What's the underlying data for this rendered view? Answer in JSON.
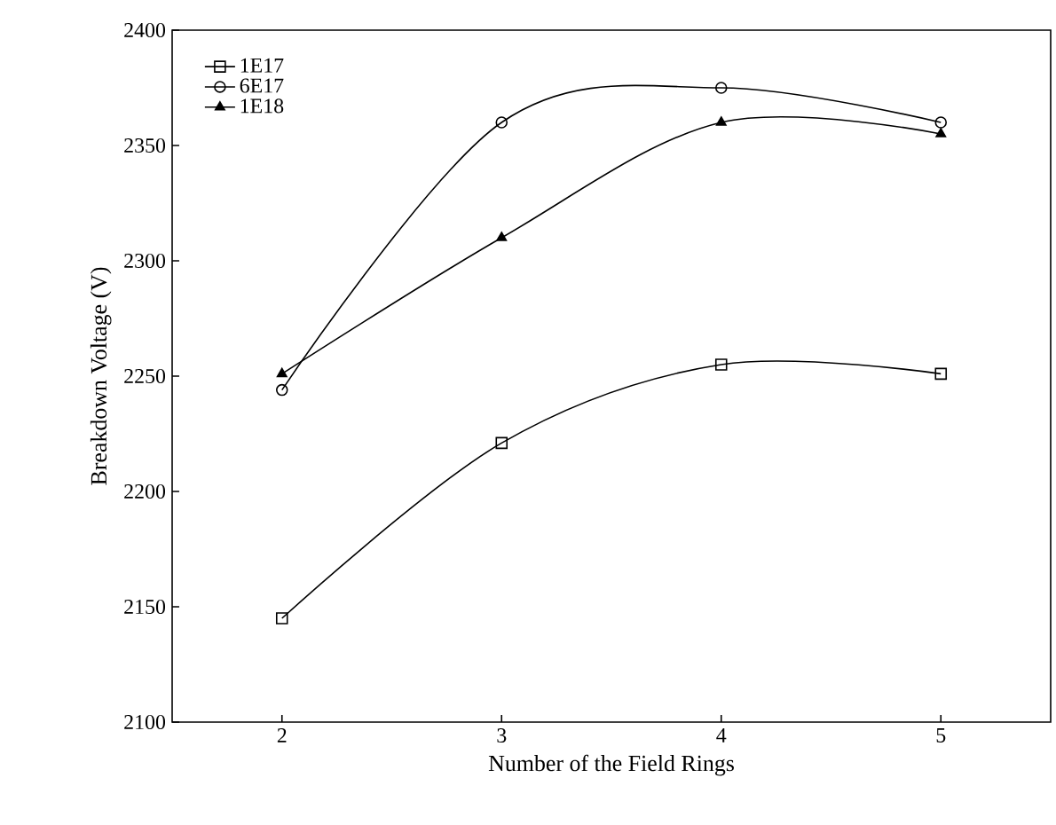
{
  "chart_data": {
    "type": "line",
    "xlabel": "Number of the Field Rings",
    "ylabel": "Breakdown Voltage (V)",
    "x": [
      2,
      3,
      4,
      5
    ],
    "series": [
      {
        "name": "1E17",
        "color": "#000000",
        "marker": "square",
        "values": [
          2145,
          2221,
          2255,
          2251
        ]
      },
      {
        "name": "6E17",
        "color": "#000000",
        "marker": "circle",
        "values": [
          2244,
          2360,
          2375,
          2360
        ]
      },
      {
        "name": "1E18",
        "color": "#000000",
        "marker": "triangle",
        "values": [
          2251,
          2310,
          2360,
          2355
        ]
      }
    ],
    "xlim": [
      1.5,
      5.5
    ],
    "ylim": [
      2100,
      2400
    ],
    "xticks": [
      2,
      3,
      4,
      5
    ],
    "yticks": [
      2100,
      2150,
      2200,
      2250,
      2300,
      2350,
      2400
    ],
    "legend": "top left",
    "grid": false,
    "line_style": "solid"
  }
}
